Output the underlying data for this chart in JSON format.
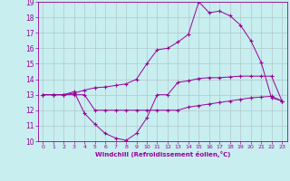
{
  "xlabel": "Windchill (Refroidissement éolien,°C)",
  "background_color": "#c8eef0",
  "line_color": "#990099",
  "grid_color": "#b0c8cc",
  "xlim": [
    -0.5,
    23.5
  ],
  "ylim": [
    10,
    19
  ],
  "xticks": [
    0,
    1,
    2,
    3,
    4,
    5,
    6,
    7,
    8,
    9,
    10,
    11,
    12,
    13,
    14,
    15,
    16,
    17,
    18,
    19,
    20,
    21,
    22,
    23
  ],
  "yticks": [
    10,
    11,
    12,
    13,
    14,
    15,
    16,
    17,
    18,
    19
  ],
  "line1_x": [
    0,
    1,
    2,
    3,
    4,
    5,
    6,
    7,
    8,
    9,
    10,
    11,
    12,
    13,
    14,
    15,
    16,
    17,
    18,
    19,
    20,
    21,
    22,
    23
  ],
  "line1_y": [
    13,
    13,
    13,
    13.2,
    11.8,
    11.1,
    10.5,
    10.2,
    10.05,
    10.5,
    11.5,
    13.0,
    13.0,
    13.8,
    13.9,
    14.05,
    14.1,
    14.1,
    14.15,
    14.2,
    14.2,
    14.2,
    14.2,
    12.6
  ],
  "line2_x": [
    0,
    1,
    2,
    3,
    4,
    5,
    6,
    7,
    8,
    9,
    10,
    11,
    12,
    13,
    14,
    15,
    16,
    17,
    18,
    19,
    20,
    21,
    22,
    23
  ],
  "line2_y": [
    13,
    13,
    13,
    13,
    13,
    12,
    12,
    12,
    12,
    12,
    12,
    12,
    12,
    12,
    12.2,
    12.3,
    12.4,
    12.5,
    12.6,
    12.7,
    12.8,
    12.85,
    12.9,
    12.6
  ],
  "line3_x": [
    0,
    1,
    2,
    3,
    4,
    5,
    6,
    7,
    8,
    9,
    10,
    11,
    12,
    13,
    14,
    15,
    16,
    17,
    18,
    19,
    20,
    21,
    22,
    23
  ],
  "line3_y": [
    13,
    13,
    13,
    13.1,
    13.3,
    13.45,
    13.5,
    13.6,
    13.7,
    14.0,
    15.0,
    15.9,
    16.0,
    16.4,
    16.9,
    19.0,
    18.3,
    18.4,
    18.1,
    17.5,
    16.5,
    15.1,
    12.8,
    12.6
  ]
}
